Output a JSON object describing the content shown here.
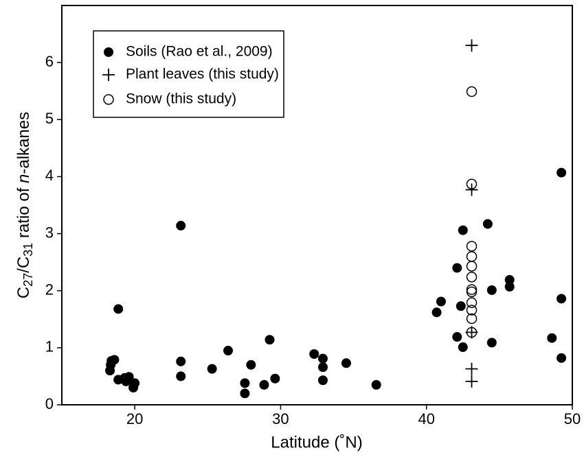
{
  "chart_data": {
    "type": "scatter",
    "xlabel": "Latitude (˚N)",
    "ylabel": [
      "C",
      "27",
      "/C",
      "31",
      " ratio of ",
      "n",
      "-alkanes"
    ],
    "xlim": [
      15,
      50
    ],
    "xticks": [
      20,
      30,
      40,
      50
    ],
    "ylim": [
      0,
      7
    ],
    "yticks": [
      0,
      1,
      2,
      3,
      4,
      5,
      6
    ],
    "legend": "upper left",
    "series": [
      {
        "name": "Soils (Rao et al., 2009)",
        "color": "#000000",
        "marker": "filled",
        "x": [
          18.87,
          18.4,
          18.6,
          18.35,
          18.3,
          18.87,
          19.3,
          19.6,
          19.4,
          20.0,
          19.9,
          23.16,
          23.16,
          23.16,
          25.3,
          26.4,
          27.55,
          27.55,
          27.97,
          28.87,
          29.25,
          29.62,
          32.3,
          32.9,
          32.9,
          32.9,
          34.5,
          36.56,
          40.7,
          41.0,
          42.1,
          42.1,
          42.36,
          42.5,
          42.5,
          44.2,
          44.48,
          44.48,
          45.7,
          45.7,
          48.6,
          49.25,
          49.25,
          49.25
        ],
        "values": [
          1.68,
          0.77,
          0.79,
          0.7,
          0.6,
          0.44,
          0.47,
          0.49,
          0.41,
          0.38,
          0.3,
          3.14,
          0.76,
          0.5,
          0.63,
          0.95,
          0.38,
          0.2,
          0.7,
          0.35,
          1.14,
          0.46,
          0.89,
          0.81,
          0.66,
          0.43,
          0.73,
          0.35,
          1.62,
          1.81,
          1.19,
          2.4,
          1.73,
          3.06,
          1.01,
          3.17,
          2.01,
          1.09,
          2.19,
          2.07,
          1.17,
          4.07,
          1.86,
          0.82
        ]
      },
      {
        "name": "Plant leaves (this study)",
        "color": "#000000",
        "marker": "plus",
        "x": [
          43.1,
          43.1,
          43.1,
          43.1,
          43.1
        ],
        "values": [
          6.3,
          3.77,
          1.27,
          0.63,
          0.41
        ]
      },
      {
        "name": "Snow (this study)",
        "color": "#000000",
        "marker": "open",
        "x": [
          43.1,
          43.1,
          43.1,
          43.1,
          43.1,
          43.1,
          43.1,
          43.1,
          43.1,
          43.1,
          43.1,
          43.1
        ],
        "values": [
          5.49,
          3.87,
          2.78,
          2.6,
          2.43,
          2.24,
          2.02,
          1.98,
          1.79,
          1.66,
          1.51,
          1.27
        ]
      }
    ]
  }
}
